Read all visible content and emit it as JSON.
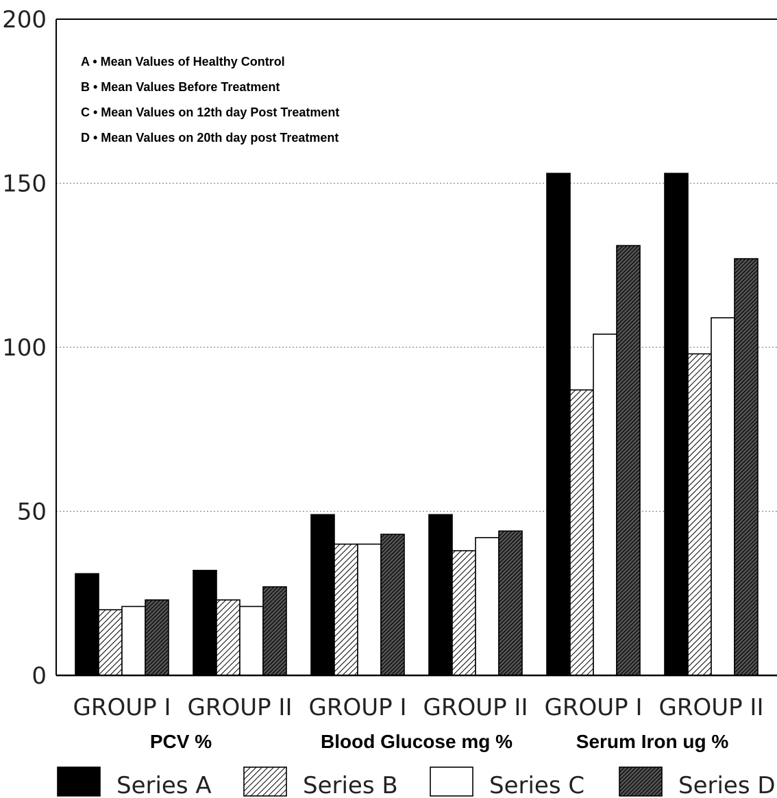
{
  "chart_data": {
    "type": "bar",
    "categories": [
      "GROUP I",
      "GROUP II",
      "GROUP I",
      "GROUP II",
      "GROUP I",
      "GROUP II"
    ],
    "group_labels": [
      "PCV %",
      "Blood Glucose mg %",
      "Serum Iron ug %"
    ],
    "series": [
      {
        "name": "Series A",
        "values": [
          31,
          32,
          49,
          49,
          153,
          153
        ]
      },
      {
        "name": "Series B",
        "values": [
          20,
          23,
          40,
          38,
          87,
          98
        ]
      },
      {
        "name": "Series C",
        "values": [
          21,
          21,
          40,
          42,
          104,
          109
        ]
      },
      {
        "name": "Series D",
        "values": [
          23,
          27,
          43,
          44,
          131,
          127
        ]
      }
    ],
    "y_ticks": [
      "0",
      "50",
      "100",
      "150",
      "200"
    ],
    "ylim": [
      0,
      200
    ],
    "grid": true,
    "legend_position": "bottom",
    "notes": [
      "A • Mean Values of Healthy Control",
      "B • Mean Values Before Treatment",
      "C • Mean Values on 12th day Post Treatment",
      "D • Mean Values on 20th day post Treatment"
    ],
    "colors": {
      "A": "#000000",
      "B": "#ffffff",
      "C": "#ffffff",
      "D": "#333333"
    },
    "patterns": {
      "A": "solid",
      "B": "diagonal-light",
      "C": "empty",
      "D": "diagonal-dense"
    }
  }
}
